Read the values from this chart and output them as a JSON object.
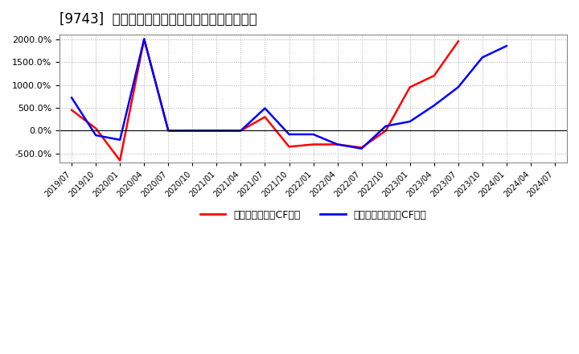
{
  "title": "[9743]  有利子負債キャッシュフロー比率の推移",
  "background_color": "#ffffff",
  "plot_background": "#ffffff",
  "grid_color": "#aaaaaa",
  "ylim": [
    -700,
    2100
  ],
  "yticks": [
    -500,
    0,
    500,
    1000,
    1500,
    2000
  ],
  "legend_labels": [
    "有利子負債営業CF比率",
    "有利子負債フリーCF比率"
  ],
  "line_colors": [
    "#ff0000",
    "#0000ff"
  ],
  "x_labels": [
    "2019/07",
    "2019/10",
    "2020/01",
    "2020/04",
    "2020/07",
    "2020/10",
    "2021/01",
    "2021/04",
    "2021/07",
    "2021/10",
    "2022/01",
    "2022/04",
    "2022/07",
    "2022/10",
    "2023/01",
    "2023/04",
    "2023/07",
    "2023/10",
    "2024/01",
    "2024/04",
    "2024/07"
  ],
  "red_y": [
    450,
    50,
    -650,
    2000,
    0,
    0,
    0,
    0,
    300,
    -350,
    -300,
    -300,
    -370,
    0,
    950,
    1200,
    1950,
    null,
    null,
    null,
    null
  ],
  "blue_y": [
    720,
    -100,
    -200,
    2000,
    0,
    0,
    0,
    0,
    490,
    -80,
    -80,
    -300,
    -390,
    100,
    200,
    550,
    950,
    1600,
    1850,
    null,
    null
  ]
}
